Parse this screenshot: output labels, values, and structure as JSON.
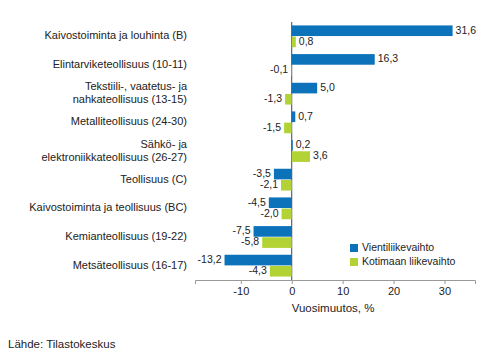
{
  "chart_data": {
    "type": "bar",
    "orientation": "horizontal",
    "categories": [
      "Kaivostoiminta ja louhinta (B)",
      "Elintarviketeollisuus (10-11)",
      "Tekstiili-, vaatetus- ja\nnahkateollisuus (13-15)",
      "Metalliteollisuus (24-30)",
      "Sähkö- ja\nelektroniikkateollisuus (26-27)",
      "Teollisuus (C)",
      "Kaivostoiminta ja teollisuus (BC)",
      "Kemianteollisuus (19-22)",
      "Metsäteollisuus (16-17)"
    ],
    "series": [
      {
        "name": "Vientiliikevaihto",
        "color": "#0c72b9",
        "values": [
          31.6,
          16.3,
          5.0,
          0.7,
          0.2,
          -3.5,
          -4.5,
          -7.5,
          -13.2
        ],
        "value_labels": [
          "31,6",
          "16,3",
          "5,0",
          "0,7",
          "0,2",
          "-3,5",
          "-4,5",
          "-7,5",
          "-13,2"
        ]
      },
      {
        "name": "Kotimaan liikevaihto",
        "color": "#b2d235",
        "values": [
          0.8,
          -0.1,
          -1.3,
          -1.5,
          3.6,
          -2.1,
          -2.0,
          -5.8,
          -4.3
        ],
        "value_labels": [
          "0,8",
          "-0,1",
          "-1,3",
          "-1,5",
          "3,6",
          "-2,1",
          "-2,0",
          "-5,8",
          "-4,3"
        ]
      }
    ],
    "x_label": "Vuosimuutos, %",
    "xlim": [
      -19,
      36
    ],
    "xticks": [
      -10,
      0,
      10,
      20,
      30
    ],
    "data_labels": true,
    "legend": "lower right",
    "grid": false,
    "source": "Lähde: Tilastokeskus"
  }
}
